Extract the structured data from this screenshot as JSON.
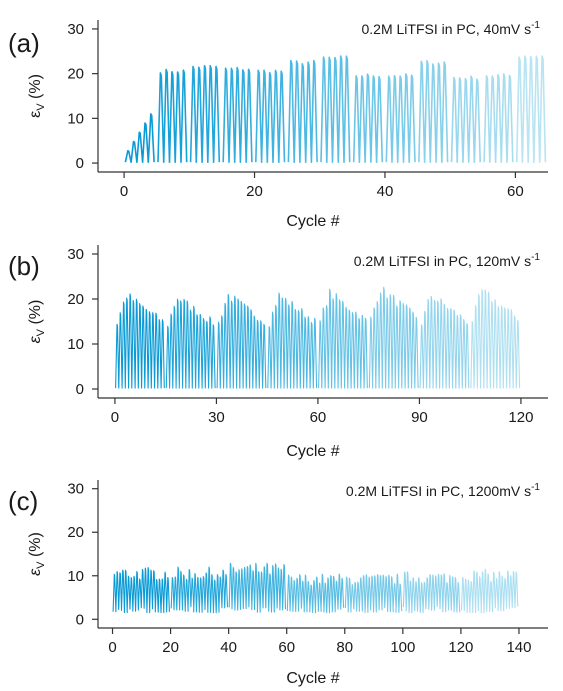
{
  "chart_data": [
    {
      "type": "line",
      "panel_label": "(a)",
      "annotation": "0.2M LiTFSI in PC, 40mV s",
      "annotation_exponent": "-1",
      "ylabel_base": "ε",
      "ylabel_sub": "V",
      "ylabel_rest": " (%)",
      "xlabel": "Cycle #",
      "xlim": [
        -4,
        65
      ],
      "ylim": [
        -2,
        32
      ],
      "xticks": [
        "0",
        "20",
        "40",
        "60"
      ],
      "xtick_values": [
        0,
        20,
        40,
        60
      ],
      "yticks": [
        "0",
        "10",
        "20",
        "30"
      ],
      "ytick_values": [
        0,
        10,
        20,
        30
      ],
      "n_segments": 13,
      "cycles_per_segment": 5,
      "segment_peak_strain": [
        11,
        21,
        22,
        21.5,
        21,
        23,
        24,
        20,
        20,
        23,
        19.5,
        20,
        24.5
      ],
      "segment_colors": [
        "#0a9bd6",
        "#16a1d9",
        "#22a6db",
        "#30addd",
        "#3fb3e0",
        "#4db9e2",
        "#5cbfe4",
        "#6bc5e7",
        "#7acbe9",
        "#89d1eb",
        "#99d7ee",
        "#a8ddf0",
        "#b8e4f3"
      ]
    },
    {
      "type": "line",
      "panel_label": "(b)",
      "annotation": "0.2M LiTFSI in PC, 120mV s",
      "annotation_exponent": "-1",
      "ylabel_base": "ε",
      "ylabel_sub": "V",
      "ylabel_rest": " (%)",
      "xlabel": "Cycle #",
      "xlim": [
        -5,
        128
      ],
      "ylim": [
        -2,
        32
      ],
      "xticks": [
        "0",
        "30",
        "60",
        "90",
        "120"
      ],
      "xtick_values": [
        0,
        30,
        60,
        90,
        120
      ],
      "yticks": [
        "0",
        "10",
        "20",
        "30"
      ],
      "ytick_values": [
        0,
        10,
        20,
        30
      ],
      "n_segments": 8,
      "cycles_per_segment": 15,
      "segment_peak_strain": [
        22,
        21.5,
        22,
        22,
        22.5,
        23.5,
        22,
        23
      ],
      "segment_colors": [
        "#0a9bd6",
        "#1fa5da",
        "#36aede",
        "#4db9e2",
        "#64c2e5",
        "#7ccbe9",
        "#94d5ed",
        "#afe0f1"
      ]
    },
    {
      "type": "line",
      "panel_label": "(c)",
      "annotation": "0.2M LiTFSI in PC, 1200mV s",
      "annotation_exponent": "-1",
      "ylabel_base": "ε",
      "ylabel_sub": "V",
      "ylabel_rest": " (%)",
      "xlabel": "Cycle #",
      "xlim": [
        -5,
        150
      ],
      "ylim": [
        -2,
        32
      ],
      "xticks": [
        "0",
        "20",
        "40",
        "60",
        "80",
        "100",
        "120",
        "140"
      ],
      "xtick_values": [
        0,
        20,
        40,
        60,
        80,
        100,
        120,
        140
      ],
      "yticks": [
        "0",
        "10",
        "20",
        "30"
      ],
      "ytick_values": [
        0,
        10,
        20,
        30
      ],
      "n_segments": 7,
      "cycles_per_segment": 20,
      "segment_peak_strain": [
        12,
        12,
        13,
        10.5,
        10.5,
        11,
        11.5
      ],
      "segment_colors": [
        "#0a9bd6",
        "#23a7db",
        "#3eb3e0",
        "#58bde3",
        "#74c8e8",
        "#8fd3ec",
        "#abdff1"
      ]
    }
  ]
}
